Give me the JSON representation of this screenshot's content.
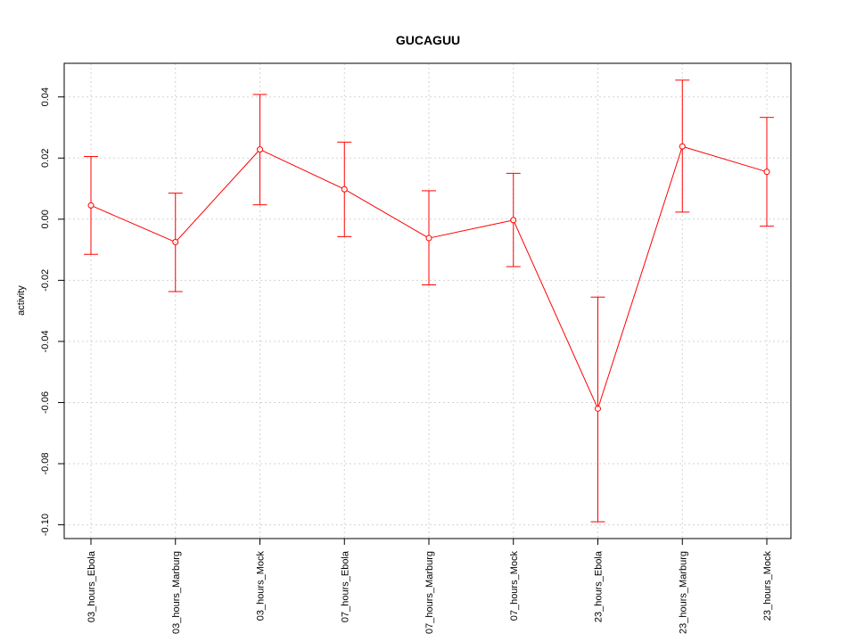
{
  "chart_data": {
    "type": "line",
    "title": "GUCAGUU",
    "xlabel": "",
    "ylabel": "activity",
    "categories": [
      "03_hours_Ebola",
      "03_hours_Marburg",
      "03_hours_Mock",
      "07_hours_Ebola",
      "07_hours_Marburg",
      "07_hours_Mock",
      "23_hours_Ebola",
      "23_hours_Marburg",
      "23_hours_Mock"
    ],
    "series": [
      {
        "values": [
          0.0045,
          -0.0075,
          0.0228,
          0.0098,
          -0.0062,
          -0.0003,
          -0.062,
          0.0238,
          0.0155
        ],
        "lower": [
          -0.0115,
          -0.0237,
          0.0047,
          -0.0057,
          -0.0215,
          -0.0155,
          -0.099,
          0.0023,
          -0.0023
        ],
        "upper": [
          0.0205,
          0.0085,
          0.0408,
          0.0252,
          0.0093,
          0.015,
          -0.0255,
          0.0455,
          0.0333
        ]
      }
    ],
    "yticks": [
      0.04,
      0.02,
      0.0,
      -0.02,
      -0.04,
      -0.06,
      -0.08,
      -0.1
    ],
    "ytick_labels": [
      "0.04",
      "0.02",
      "0.00",
      "-0.02",
      "-0.04",
      "-0.06",
      "-0.08",
      "-0.10"
    ],
    "ylim": [
      -0.1045,
      0.051
    ],
    "grid": true,
    "colors": {
      "series": "#ff0000",
      "grid": "#d3d3d3",
      "axis": "#000000"
    }
  }
}
